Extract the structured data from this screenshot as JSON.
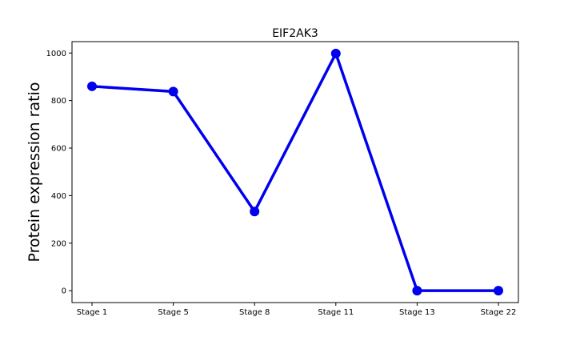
{
  "chart_data": {
    "type": "line",
    "title": "EIF2AK3",
    "xlabel": "",
    "ylabel": "Protein expression ratio",
    "categories": [
      "Stage 1",
      "Stage 5",
      "Stage 8",
      "Stage 11",
      "Stage 13",
      "Stage 22"
    ],
    "series": [
      {
        "values": [
          860,
          838,
          333,
          998,
          0,
          0
        ],
        "color": "#0000ee"
      }
    ],
    "ylim": [
      -50,
      1048
    ],
    "yticks": [
      0,
      200,
      400,
      600,
      800,
      1000
    ],
    "grid": false,
    "legend": "none"
  }
}
